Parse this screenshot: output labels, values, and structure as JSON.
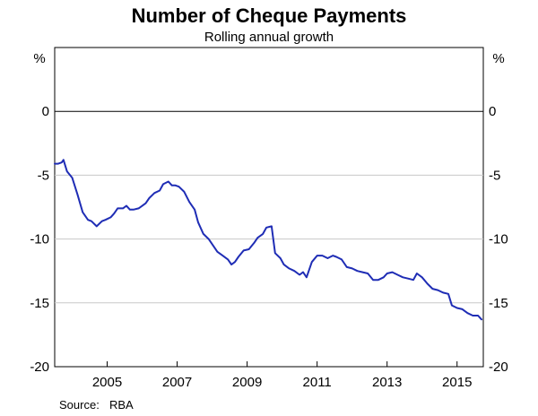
{
  "chart_data": {
    "type": "line",
    "title": "Number of Cheque Payments",
    "subtitle": "Rolling annual growth",
    "unit_left": "%",
    "unit_right": "%",
    "source_label": "Source:",
    "source_value": "RBA",
    "ylim": [
      -20,
      5
    ],
    "xlim": [
      2003.5,
      2015.75
    ],
    "y_ticks": [
      0,
      -5,
      -10,
      -15,
      -20
    ],
    "y_tick_labels": [
      "0",
      "-5",
      "-10",
      "-15",
      "-20"
    ],
    "x_ticks": [
      2005,
      2007,
      2009,
      2011,
      2013,
      2015
    ],
    "x_tick_labels": [
      "2005",
      "2007",
      "2009",
      "2011",
      "2013",
      "2015"
    ],
    "zero_line": true,
    "grid": true,
    "series_color": "#1f2db5",
    "series": [
      {
        "x": [
          2003.5,
          2003.6,
          2003.7,
          2003.75,
          2003.85,
          2004.0,
          2004.15,
          2004.3,
          2004.45,
          2004.55,
          2004.7,
          2004.85,
          2004.95,
          2005.1,
          2005.2,
          2005.3,
          2005.45,
          2005.55,
          2005.65,
          2005.75,
          2005.9,
          2006.0,
          2006.1,
          2006.2,
          2006.35,
          2006.5,
          2006.6,
          2006.75,
          2006.85,
          2006.95,
          2007.05,
          2007.2,
          2007.35,
          2007.5,
          2007.6,
          2007.75,
          2007.9,
          2008.0,
          2008.15,
          2008.3,
          2008.45,
          2008.55,
          2008.65,
          2008.75,
          2008.9,
          2009.05,
          2009.2,
          2009.3,
          2009.45,
          2009.55,
          2009.7,
          2009.8,
          2009.95,
          2010.05,
          2010.2,
          2010.35,
          2010.5,
          2010.6,
          2010.7,
          2010.85,
          2011.0,
          2011.15,
          2011.3,
          2011.45,
          2011.55,
          2011.7,
          2011.85,
          2012.0,
          2012.15,
          2012.3,
          2012.45,
          2012.6,
          2012.75,
          2012.9,
          2013.0,
          2013.15,
          2013.3,
          2013.45,
          2013.6,
          2013.75,
          2013.85,
          2014.0,
          2014.15,
          2014.3,
          2014.45,
          2014.6,
          2014.75,
          2014.85,
          2015.0,
          2015.15,
          2015.3,
          2015.45,
          2015.6,
          2015.7
        ],
        "y": [
          -4.1,
          -4.1,
          -4.0,
          -3.8,
          -4.7,
          -5.2,
          -6.5,
          -7.9,
          -8.5,
          -8.6,
          -9.0,
          -8.6,
          -8.5,
          -8.3,
          -8.0,
          -7.6,
          -7.6,
          -7.4,
          -7.7,
          -7.7,
          -7.6,
          -7.4,
          -7.2,
          -6.8,
          -6.4,
          -6.2,
          -5.7,
          -5.5,
          -5.8,
          -5.8,
          -5.9,
          -6.3,
          -7.1,
          -7.7,
          -8.7,
          -9.6,
          -10.0,
          -10.4,
          -11.0,
          -11.3,
          -11.6,
          -12.0,
          -11.8,
          -11.4,
          -10.9,
          -10.8,
          -10.3,
          -9.9,
          -9.6,
          -9.1,
          -9.0,
          -11.1,
          -11.5,
          -12.0,
          -12.3,
          -12.5,
          -12.8,
          -12.6,
          -13.0,
          -11.8,
          -11.3,
          -11.3,
          -11.5,
          -11.3,
          -11.4,
          -11.6,
          -12.2,
          -12.3,
          -12.5,
          -12.6,
          -12.7,
          -13.2,
          -13.2,
          -13.0,
          -12.7,
          -12.6,
          -12.8,
          -13.0,
          -13.1,
          -13.2,
          -12.7,
          -13.0,
          -13.5,
          -13.9,
          -14.0,
          -14.2,
          -14.3,
          -15.2,
          -15.4,
          -15.5,
          -15.8,
          -16.0,
          -16.0,
          -16.3
        ]
      }
    ]
  }
}
